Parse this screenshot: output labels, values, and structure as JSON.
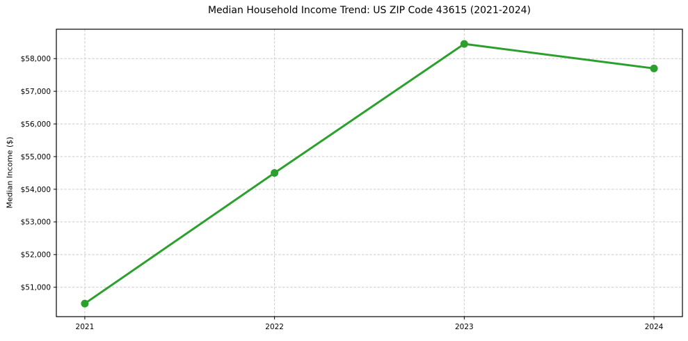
{
  "chart_data": {
    "type": "line",
    "title": "Median Household Income Trend: US ZIP Code 43615 (2021-2024)",
    "xlabel": "",
    "ylabel": "Median Income ($)",
    "x": [
      2021,
      2022,
      2023,
      2024
    ],
    "x_tick_labels": [
      "2021",
      "2022",
      "2023",
      "2024"
    ],
    "series": [
      {
        "name": "Median Household Income",
        "values": [
          50500,
          54500,
          58450,
          57700
        ],
        "color": "#2ca02c",
        "marker": "circle"
      }
    ],
    "y_ticks": [
      {
        "value": 51000,
        "label": "$51,000"
      },
      {
        "value": 52000,
        "label": "$52,000"
      },
      {
        "value": 53000,
        "label": "$53,000"
      },
      {
        "value": 54000,
        "label": "$54,000"
      },
      {
        "value": 55000,
        "label": "$55,000"
      },
      {
        "value": 56000,
        "label": "$56,000"
      },
      {
        "value": 57000,
        "label": "$57,000"
      },
      {
        "value": 58000,
        "label": "$58,000"
      }
    ],
    "xlim": [
      2020.85,
      2024.15
    ],
    "ylim": [
      50100,
      58900
    ],
    "grid": true,
    "grid_style": "dashed",
    "legend": "none"
  },
  "colors": {
    "line": "#2ca02c",
    "grid": "#cccccc",
    "axis": "#000000",
    "text": "#000000",
    "background": "#ffffff"
  }
}
